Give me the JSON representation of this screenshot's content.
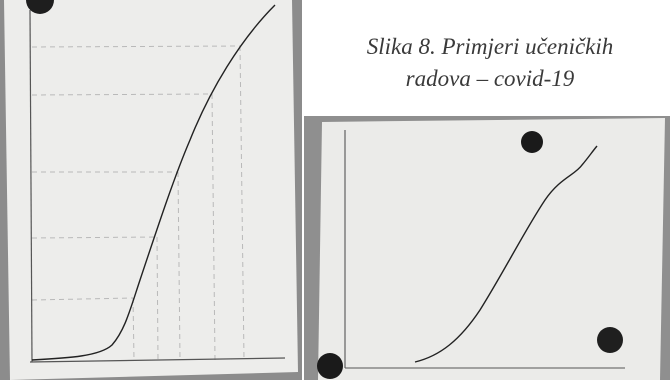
{
  "caption": {
    "line1": "Slika 8. Primjeri učeničkih",
    "line2": "radova – covid-19"
  }
}
